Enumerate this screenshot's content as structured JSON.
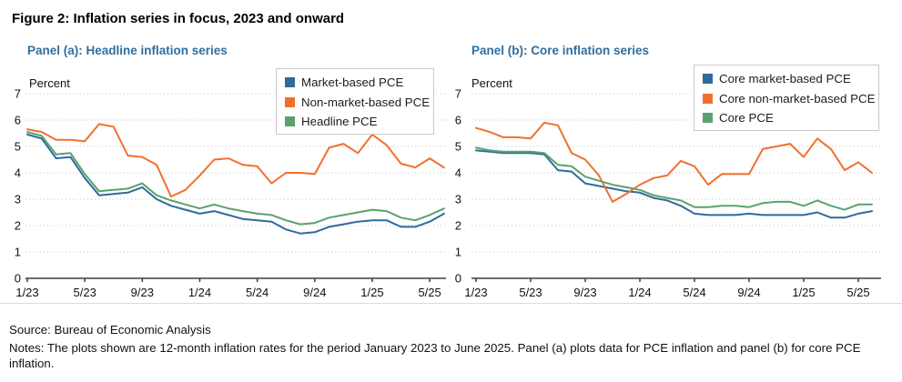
{
  "figure": {
    "title": "Figure 2: Inflation series in focus, 2023 and onward",
    "source": "Source: Bureau of Economic Analysis",
    "notes": "Notes: The plots shown are 12-month inflation rates for the period January 2023 to June 2025. Panel (a) plots data for PCE inflation and panel (b) for core PCE inflation."
  },
  "colors": {
    "panel_header": "#2e6f9f",
    "series_blue": "#2f6b9d",
    "series_orange": "#f1702e",
    "series_green": "#5ba170",
    "gridline": "#c3c3c3",
    "axis": "#3d3d3d"
  },
  "chart_data": [
    {
      "type": "line",
      "panel_title": "Panel (a): Headline inflation series",
      "ylabel": "Percent",
      "ylim": [
        0,
        7
      ],
      "y_ticks": [
        0,
        1,
        2,
        3,
        4,
        5,
        6,
        7
      ],
      "grid": "dotted-horizontal",
      "legend_position": "top-right",
      "x_tick_labels": [
        "1/23",
        "5/23",
        "9/23",
        "1/24",
        "5/24",
        "9/24",
        "1/25",
        "5/25"
      ],
      "months": [
        "1/23",
        "2/23",
        "3/23",
        "4/23",
        "5/23",
        "6/23",
        "7/23",
        "8/23",
        "9/23",
        "10/23",
        "11/23",
        "12/23",
        "1/24",
        "2/24",
        "3/24",
        "4/24",
        "5/24",
        "6/24",
        "7/24",
        "8/24",
        "9/24",
        "10/24",
        "11/24",
        "12/24",
        "1/25",
        "2/25",
        "3/25",
        "4/25",
        "5/25",
        "6/25"
      ],
      "series": [
        {
          "name": "Market-based PCE",
          "color": "#2f6b9d",
          "values": [
            5.45,
            5.3,
            4.55,
            4.6,
            3.8,
            3.15,
            3.2,
            3.25,
            3.45,
            3.0,
            2.75,
            2.6,
            2.45,
            2.55,
            2.4,
            2.25,
            2.2,
            2.15,
            1.85,
            1.7,
            1.75,
            1.95,
            2.05,
            2.15,
            2.2,
            2.2,
            1.95,
            1.95,
            2.15,
            2.45
          ]
        },
        {
          "name": "Non-market-based PCE",
          "color": "#f1702e",
          "values": [
            5.65,
            5.55,
            5.25,
            5.25,
            5.2,
            5.85,
            5.75,
            4.65,
            4.6,
            4.3,
            3.1,
            3.35,
            3.9,
            4.5,
            4.55,
            4.3,
            4.25,
            3.6,
            4.0,
            4.0,
            3.95,
            4.95,
            5.1,
            4.75,
            5.45,
            5.05,
            4.35,
            4.2,
            4.55,
            4.2
          ]
        },
        {
          "name": "Headline PCE",
          "color": "#5ba170",
          "values": [
            5.55,
            5.4,
            4.7,
            4.75,
            3.95,
            3.3,
            3.35,
            3.4,
            3.6,
            3.15,
            2.95,
            2.8,
            2.65,
            2.8,
            2.65,
            2.55,
            2.45,
            2.4,
            2.2,
            2.05,
            2.1,
            2.3,
            2.4,
            2.5,
            2.6,
            2.55,
            2.3,
            2.2,
            2.4,
            2.65
          ]
        }
      ]
    },
    {
      "type": "line",
      "panel_title": "Panel (b): Core inflation series",
      "ylabel": "Percent",
      "ylim": [
        0,
        7
      ],
      "y_ticks": [
        0,
        1,
        2,
        3,
        4,
        5,
        6,
        7
      ],
      "grid": "dotted-horizontal",
      "legend_position": "top-right",
      "x_tick_labels": [
        "1/23",
        "5/23",
        "9/23",
        "1/24",
        "5/24",
        "9/24",
        "1/25",
        "5/25"
      ],
      "months": [
        "1/23",
        "2/23",
        "3/23",
        "4/23",
        "5/23",
        "6/23",
        "7/23",
        "8/23",
        "9/23",
        "10/23",
        "11/23",
        "12/23",
        "1/24",
        "2/24",
        "3/24",
        "4/24",
        "5/24",
        "6/24",
        "7/24",
        "8/24",
        "9/24",
        "10/24",
        "11/24",
        "12/24",
        "1/25",
        "2/25",
        "3/25",
        "4/25",
        "5/25",
        "6/25"
      ],
      "series": [
        {
          "name": "Core market-based PCE",
          "color": "#2f6b9d",
          "values": [
            4.85,
            4.8,
            4.75,
            4.75,
            4.75,
            4.7,
            4.1,
            4.05,
            3.6,
            3.5,
            3.4,
            3.3,
            3.25,
            3.05,
            2.95,
            2.75,
            2.45,
            2.4,
            2.4,
            2.4,
            2.45,
            2.4,
            2.4,
            2.4,
            2.4,
            2.5,
            2.3,
            2.3,
            2.45,
            2.55
          ]
        },
        {
          "name": "Core non-market-based PCE",
          "color": "#f1702e",
          "values": [
            5.7,
            5.55,
            5.35,
            5.35,
            5.3,
            5.9,
            5.8,
            4.75,
            4.5,
            3.9,
            2.9,
            3.2,
            3.55,
            3.8,
            3.9,
            4.45,
            4.25,
            3.55,
            3.95,
            3.95,
            3.95,
            4.9,
            5.0,
            5.1,
            4.6,
            5.3,
            4.9,
            4.1,
            4.4,
            4.0
          ]
        },
        {
          "name": "Core PCE",
          "color": "#5ba170",
          "values": [
            4.95,
            4.85,
            4.8,
            4.8,
            4.8,
            4.75,
            4.3,
            4.25,
            3.85,
            3.7,
            3.55,
            3.45,
            3.35,
            3.15,
            3.05,
            2.95,
            2.7,
            2.7,
            2.75,
            2.75,
            2.7,
            2.85,
            2.9,
            2.9,
            2.75,
            2.95,
            2.75,
            2.6,
            2.8,
            2.8
          ]
        }
      ]
    }
  ]
}
